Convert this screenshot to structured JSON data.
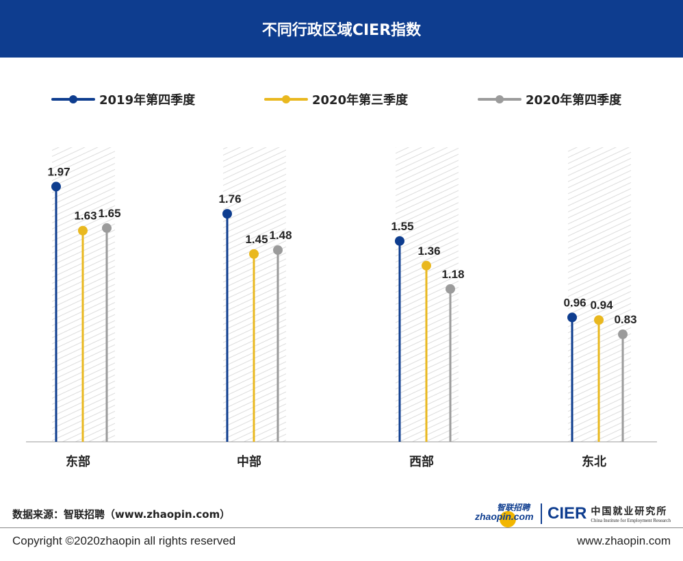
{
  "header": {
    "title": "不同行政区域CIER指数"
  },
  "legend": [
    {
      "label": "2019年第四季度",
      "color": "#0e3d8f"
    },
    {
      "label": "2020年第三季度",
      "color": "#e9b81f"
    },
    {
      "label": "2020年第四季度",
      "color": "#9b9b9b"
    }
  ],
  "chart_data": {
    "type": "lollipop",
    "title": "不同行政区域CIER指数",
    "categories": [
      "东部",
      "中部",
      "西部",
      "东北"
    ],
    "series": [
      {
        "name": "2019年第四季度",
        "color": "#0e3d8f",
        "values": [
          1.97,
          1.76,
          1.55,
          0.96
        ],
        "labels": [
          "1.97",
          "1.76",
          "1.55",
          "0.96"
        ]
      },
      {
        "name": "2020年第三季度",
        "color": "#e9b81f",
        "values": [
          1.63,
          1.45,
          1.36,
          0.94
        ],
        "labels": [
          "1.63",
          "1.45",
          "1.36",
          "0.94"
        ]
      },
      {
        "name": "2020年第四季度",
        "color": "#9b9b9b",
        "values": [
          1.65,
          1.48,
          1.18,
          0.83
        ],
        "labels": [
          "1.65",
          "1.48",
          "1.18",
          "0.83"
        ]
      }
    ],
    "ylim": [
      0,
      2.3
    ],
    "xlabel": "",
    "ylabel": "",
    "legend_position": "top"
  },
  "footer": {
    "source": "数据来源：智联招聘（www.zhaopin.com）",
    "copyright": "Copyright ©2020zhaopin all rights reserved",
    "website": "www.zhaopin.com"
  },
  "logos": {
    "zhaopin_cn": "智联招聘",
    "zhaopin_en": "zhaopin.com",
    "cier_mark": "CIER",
    "cier_cn": "中国就业研究所",
    "cier_en": "China Institute for Employment Research"
  }
}
